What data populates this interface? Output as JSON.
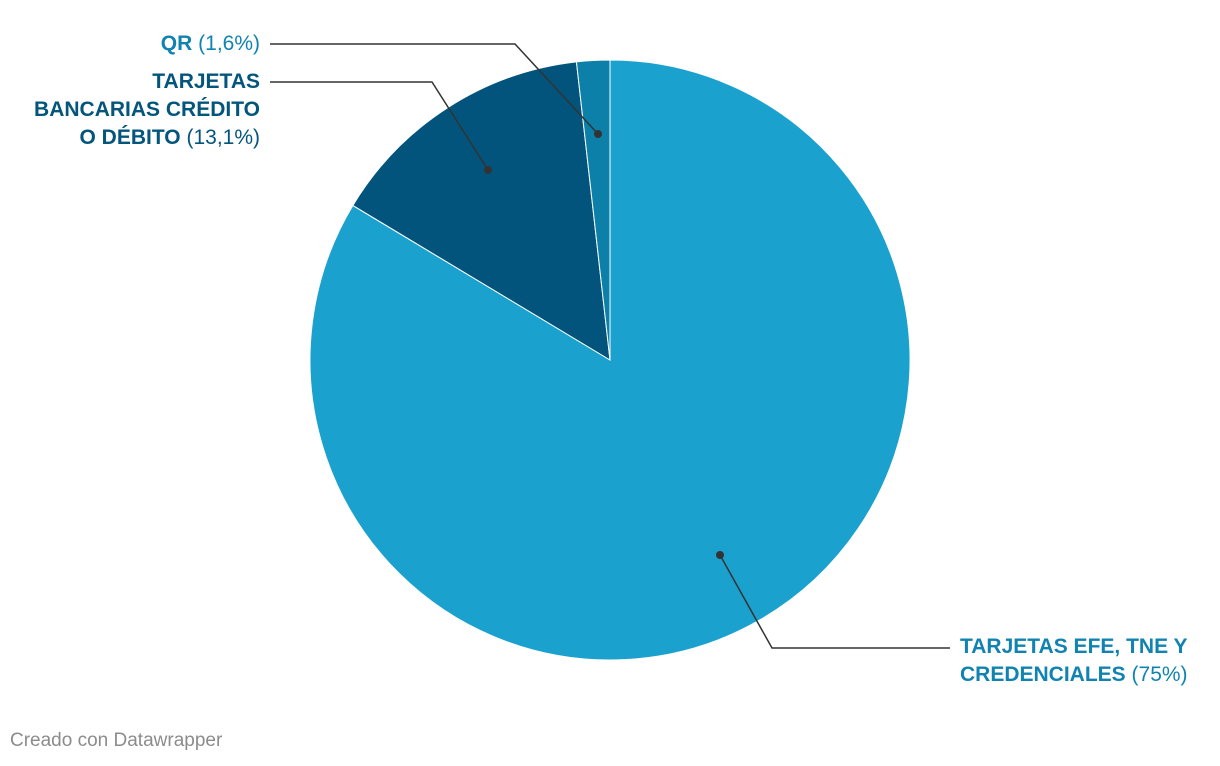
{
  "chart_data": {
    "type": "pie",
    "title": "",
    "slices": [
      {
        "label": "TARJETAS EFE, TNE Y CREDENCIALES",
        "value": 75,
        "display": "(75%)",
        "color": "#1aa1ce"
      },
      {
        "label": "TARJETAS BANCARIAS CRÉDITO O DÉBITO",
        "value": 13.1,
        "display": "(13,1%)",
        "color": "#02547c"
      },
      {
        "label": "QR",
        "value": 1.6,
        "display": "(1,6%)",
        "color": "#0c80a8"
      }
    ],
    "label_colors": {
      "efe": "#1183b0",
      "bancarias": "#03557c",
      "qr": "#1183b0"
    }
  },
  "labels": {
    "efe": {
      "line1": "TARJETAS EFE, TNE Y",
      "line2": "CREDENCIALES",
      "pct": "(75%)"
    },
    "bancarias": {
      "line1": "TARJETAS",
      "line2": "BANCARIAS CRÉDITO",
      "line3": "O DÉBITO",
      "pct": "(13,1%)"
    },
    "qr": {
      "name": "QR",
      "pct": "(1,6%)"
    }
  },
  "footer": {
    "credit": "Creado con Datawrapper"
  }
}
